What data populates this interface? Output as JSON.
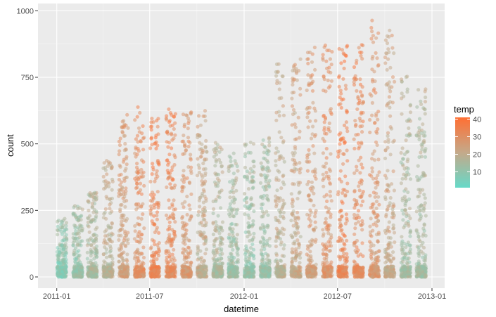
{
  "chart_data": {
    "type": "scatter",
    "xlabel": "datetime",
    "ylabel": "count",
    "xlim": [
      "2010-12-10",
      "2013-01-19"
    ],
    "ylim": [
      -50,
      1030
    ],
    "x_ticks": [
      "2011-01",
      "2011-07",
      "2012-01",
      "2012-07",
      "2013-01"
    ],
    "y_ticks": [
      0,
      250,
      500,
      750,
      1000
    ],
    "grid": true,
    "legend": {
      "title": "temp",
      "position": "right",
      "ticks": [
        10,
        20,
        30,
        40
      ],
      "range": [
        1,
        41
      ],
      "low_color": "#66d9c8",
      "mid_color": "#c4a98a",
      "high_color": "#ff6f33"
    },
    "note_days": [
      1,
      19
    ],
    "monthly": [
      {
        "month": "2011-01",
        "max_count": 220,
        "temp": 8
      },
      {
        "month": "2011-02",
        "max_count": 270,
        "temp": 11
      },
      {
        "month": "2011-03",
        "max_count": 330,
        "temp": 14
      },
      {
        "month": "2011-04",
        "max_count": 450,
        "temp": 18
      },
      {
        "month": "2011-05",
        "max_count": 610,
        "temp": 24
      },
      {
        "month": "2011-06",
        "max_count": 640,
        "temp": 29
      },
      {
        "month": "2011-07",
        "max_count": 600,
        "temp": 33
      },
      {
        "month": "2011-08",
        "max_count": 630,
        "temp": 31
      },
      {
        "month": "2011-09",
        "max_count": 620,
        "temp": 26
      },
      {
        "month": "2011-10",
        "max_count": 630,
        "temp": 20
      },
      {
        "month": "2011-11",
        "max_count": 510,
        "temp": 15
      },
      {
        "month": "2011-12",
        "max_count": 470,
        "temp": 12
      },
      {
        "month": "2012-01",
        "max_count": 510,
        "temp": 11
      },
      {
        "month": "2012-02",
        "max_count": 540,
        "temp": 12
      },
      {
        "month": "2012-03",
        "max_count": 800,
        "temp": 18
      },
      {
        "month": "2012-04",
        "max_count": 820,
        "temp": 21
      },
      {
        "month": "2012-05",
        "max_count": 870,
        "temp": 25
      },
      {
        "month": "2012-06",
        "max_count": 870,
        "temp": 28
      },
      {
        "month": "2012-07",
        "max_count": 870,
        "temp": 33
      },
      {
        "month": "2012-08",
        "max_count": 880,
        "temp": 31
      },
      {
        "month": "2012-09",
        "max_count": 975,
        "temp": 27
      },
      {
        "month": "2012-10",
        "max_count": 950,
        "temp": 21
      },
      {
        "month": "2012-11",
        "max_count": 760,
        "temp": 14
      },
      {
        "month": "2012-12",
        "max_count": 720,
        "temp": 14
      }
    ]
  }
}
